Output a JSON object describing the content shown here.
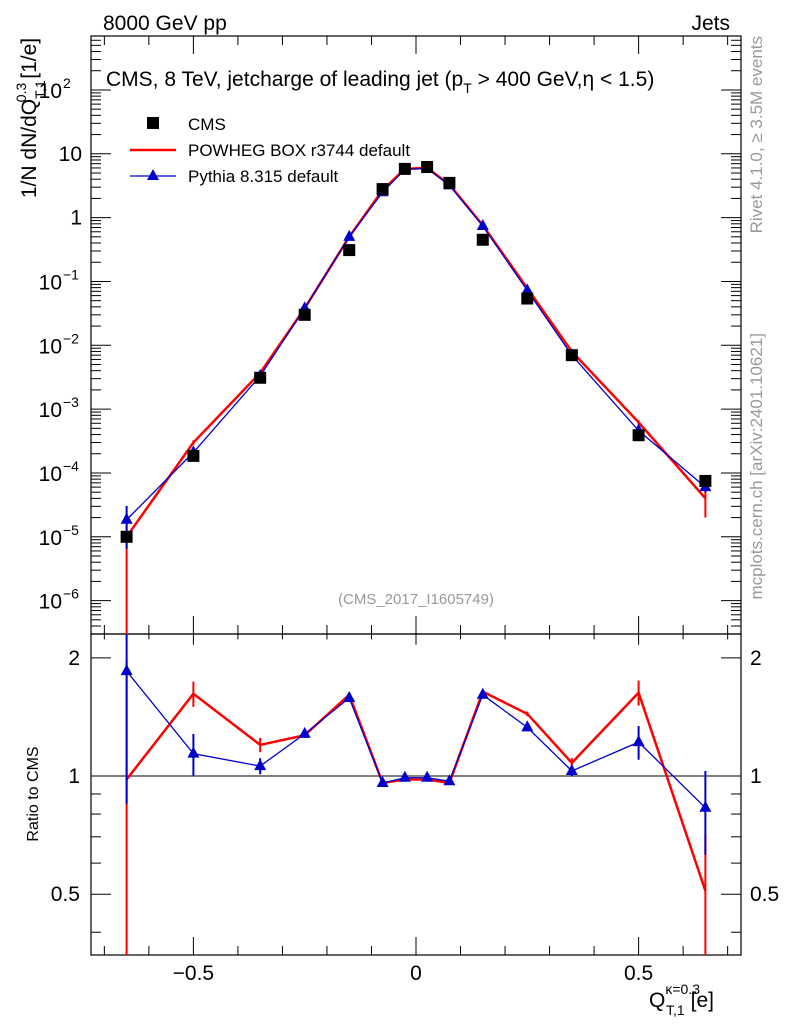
{
  "header": {
    "left": "8000 GeV pp",
    "right": "Jets"
  },
  "side": {
    "rivet": "Rivet 4.1.0, ≥ 3.5M events",
    "mcplots": "mcplots.cern.ch [arXiv:2401.10621]"
  },
  "colors": {
    "cms": "#000000",
    "powheg": "#ff0000",
    "pythia": "#0000cc"
  },
  "chart_data": {
    "type": "scatter",
    "title": "CMS, 8 TeV, jetcharge of leading jet (p_T > 400 GeV,η < 1.5)",
    "title_parts": {
      "before": "CMS, 8 TeV, jetcharge of leading jet (p",
      "sub": "T",
      "after": " > 400 GeV,η < 1.5)"
    },
    "watermark": "(CMS_2017_I1605749)",
    "xlabel": {
      "main": "Q",
      "sup": "κ=0.3",
      "sub": "T,1",
      "unit": "[e]"
    },
    "ylabel": {
      "main": "1/N dN/dQ",
      "sup": "0.3",
      "sub": "T,1",
      "unit": "[1/e]"
    },
    "ratio_ylabel": "Ratio to CMS",
    "xlim": [
      -0.73,
      0.73
    ],
    "ylim_log": [
      3e-07,
      700
    ],
    "ratio_ylim": [
      0.35,
      2.3
    ],
    "x_ticks": [
      {
        "v": -0.5,
        "label": "−0.5"
      },
      {
        "v": 0,
        "label": "0"
      },
      {
        "v": 0.5,
        "label": "0.5"
      }
    ],
    "y_ticks": [
      {
        "v": 1e-06,
        "base": "10",
        "exp": "−6",
        "label": ""
      },
      {
        "v": 1e-05,
        "base": "10",
        "exp": "−5",
        "label": ""
      },
      {
        "v": 0.0001,
        "base": "10",
        "exp": "−4",
        "label": ""
      },
      {
        "v": 0.001,
        "base": "10",
        "exp": "−3",
        "label": ""
      },
      {
        "v": 0.01,
        "base": "10",
        "exp": "−2",
        "label": ""
      },
      {
        "v": 0.1,
        "base": "10",
        "exp": "−1",
        "label": ""
      },
      {
        "v": 1,
        "base": "",
        "exp": "",
        "label": "1"
      },
      {
        "v": 10,
        "base": "",
        "exp": "",
        "label": "10"
      },
      {
        "v": 100,
        "base": "10",
        "exp": "2",
        "label": ""
      }
    ],
    "ratio_ticks": [
      {
        "v": 0.5,
        "label": "0.5"
      },
      {
        "v": 1,
        "label": "1"
      },
      {
        "v": 2,
        "label": "2"
      }
    ],
    "x": [
      -0.65,
      -0.5,
      -0.35,
      -0.25,
      -0.15,
      -0.075,
      -0.025,
      0.025,
      0.075,
      0.15,
      0.25,
      0.35,
      0.5,
      0.65
    ],
    "series": [
      {
        "name": "CMS",
        "kind": "data",
        "values": [
          1e-05,
          0.000185,
          0.0031,
          0.03,
          0.31,
          2.8,
          5.8,
          6.2,
          3.5,
          0.45,
          0.054,
          0.007,
          0.00039,
          7.5e-05
        ]
      },
      {
        "name": "POWHEG BOX r3744 default",
        "kind": "line",
        "values": [
          1e-05,
          0.0003,
          0.0037,
          0.038,
          0.5,
          2.7,
          5.8,
          6.0,
          3.3,
          0.76,
          0.078,
          0.008,
          0.00062,
          4e-05
        ],
        "errors": [
          1e-05,
          2.5e-05,
          0.00015,
          0.001,
          0.008,
          0.03,
          0.05,
          0.05,
          0.03,
          0.008,
          0.001,
          0.0002,
          5e-05,
          2e-05
        ],
        "ratio": [
          0.98,
          1.62,
          1.2,
          1.27,
          1.61,
          0.96,
          0.98,
          0.98,
          0.96,
          1.64,
          1.44,
          1.08,
          1.63,
          0.51
        ],
        "ratio_err": [
          0.98,
          0.12,
          0.05,
          0.02,
          0.02,
          0.01,
          0.01,
          0.01,
          0.01,
          0.01,
          0.02,
          0.03,
          0.12,
          0.2
        ]
      },
      {
        "name": "Pythia 8.315 default",
        "kind": "line",
        "values": [
          1.85e-05,
          0.00021,
          0.0033,
          0.038,
          0.5,
          2.5,
          5.7,
          5.9,
          3.2,
          0.74,
          0.072,
          0.007,
          0.00046,
          6e-05
        ],
        "errors": [
          1.2e-05,
          2.5e-05,
          0.00015,
          0.001,
          0.008,
          0.03,
          0.05,
          0.05,
          0.03,
          0.008,
          0.001,
          0.0002,
          6e-05,
          1e-05
        ],
        "ratio": [
          1.85,
          1.14,
          1.06,
          1.28,
          1.58,
          0.96,
          0.99,
          0.99,
          0.97,
          1.61,
          1.33,
          1.03,
          1.22,
          0.83
        ],
        "ratio_err": [
          1.0,
          0.14,
          0.05,
          0.02,
          0.02,
          0.01,
          0.01,
          0.01,
          0.01,
          0.01,
          0.02,
          0.03,
          0.12,
          0.2
        ]
      }
    ]
  }
}
